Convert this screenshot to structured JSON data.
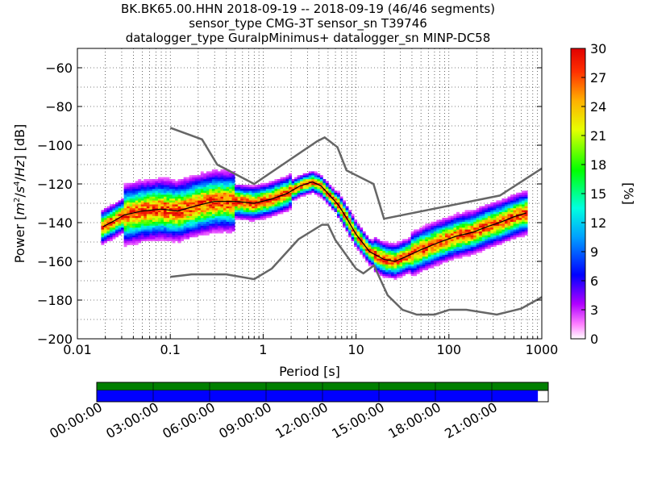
{
  "title_lines": [
    "BK.BK65.00.HHN   2018-09-19 -- 2018-09-19  (46/46 segments)",
    "sensor_type CMG-3T sensor_sn T39746",
    "datalogger_type GuralpMinimus+ datalogger_sn MINP-DC58"
  ],
  "colorbar": {
    "label": "[%]",
    "ticks": [
      "0",
      "3",
      "6",
      "9",
      "12",
      "15",
      "18",
      "21",
      "24",
      "27",
      "30"
    ],
    "range": [
      0,
      30
    ]
  },
  "coverage": {
    "time_ticks": [
      "00:00:00",
      "03:00:00",
      "06:00:00",
      "09:00:00",
      "12:00:00",
      "15:00:00",
      "18:00:00",
      "21:00:00"
    ],
    "upper_color": "#007f00",
    "lower_color": "#0000ff",
    "lower_fraction": 0.977
  },
  "chart_data": {
    "type": "heatmap",
    "xlabel": "Period [s]",
    "ylabel": "Power [m²/s⁴/Hz] [dB]",
    "x_scale": "log",
    "xlim": [
      0.01,
      1000
    ],
    "ylim": [
      -200,
      -50
    ],
    "x_tick_labels": [
      "0.01",
      "0.1",
      "1",
      "10",
      "100",
      "1000"
    ],
    "y_tick_labels": [
      "−60",
      "−80",
      "−100",
      "−120",
      "−140",
      "−160",
      "−180",
      "−200"
    ],
    "x_ticks": [
      0.01,
      0.1,
      1,
      10,
      100,
      1000
    ],
    "y_ticks": [
      -60,
      -80,
      -100,
      -120,
      -140,
      -160,
      -180,
      -200
    ],
    "grid": true,
    "nhnm_nlnm": {
      "high": [
        [
          0.1,
          -91
        ],
        [
          0.22,
          -97
        ],
        [
          0.32,
          -110
        ],
        [
          0.8,
          -120
        ],
        [
          3.8,
          -98
        ],
        [
          4.6,
          -96
        ],
        [
          6.3,
          -101
        ],
        [
          7.9,
          -113
        ],
        [
          15.4,
          -120
        ],
        [
          20,
          -138
        ],
        [
          354,
          -126
        ],
        [
          1000,
          -112
        ]
      ],
      "low": [
        [
          0.1,
          -168
        ],
        [
          0.17,
          -166.7
        ],
        [
          0.4,
          -166.7
        ],
        [
          0.8,
          -169.2
        ],
        [
          1.24,
          -163.7
        ],
        [
          2.4,
          -148.6
        ],
        [
          4.3,
          -141.1
        ],
        [
          5,
          -141.1
        ],
        [
          6,
          -149
        ],
        [
          10,
          -163.8
        ],
        [
          12,
          -166.2
        ],
        [
          15.6,
          -162.1
        ],
        [
          21.9,
          -177.5
        ],
        [
          31.6,
          -185
        ],
        [
          45,
          -187.5
        ],
        [
          70,
          -187.5
        ],
        [
          101,
          -185
        ],
        [
          154,
          -185
        ],
        [
          328,
          -187.5
        ],
        [
          600,
          -184.4
        ],
        [
          1000,
          -178.5
        ]
      ]
    },
    "mode_curve": [
      [
        0.019,
        -142
      ],
      [
        0.025,
        -139
      ],
      [
        0.032,
        -136
      ],
      [
        0.05,
        -134
      ],
      [
        0.08,
        -133
      ],
      [
        0.12,
        -134
      ],
      [
        0.2,
        -131
      ],
      [
        0.3,
        -129
      ],
      [
        0.5,
        -129
      ],
      [
        0.8,
        -130
      ],
      [
        1.2,
        -128
      ],
      [
        1.8,
        -125
      ],
      [
        2.5,
        -121
      ],
      [
        3.4,
        -119
      ],
      [
        4.2,
        -121
      ],
      [
        5,
        -125
      ],
      [
        6.5,
        -131
      ],
      [
        8,
        -138
      ],
      [
        10,
        -146
      ],
      [
        14,
        -155
      ],
      [
        20,
        -159
      ],
      [
        26,
        -160
      ],
      [
        33,
        -158
      ],
      [
        50,
        -154
      ],
      [
        80,
        -150
      ],
      [
        120,
        -147
      ],
      [
        180,
        -145
      ],
      [
        260,
        -142
      ],
      [
        350,
        -140
      ],
      [
        500,
        -137
      ],
      [
        680,
        -135
      ]
    ]
  }
}
